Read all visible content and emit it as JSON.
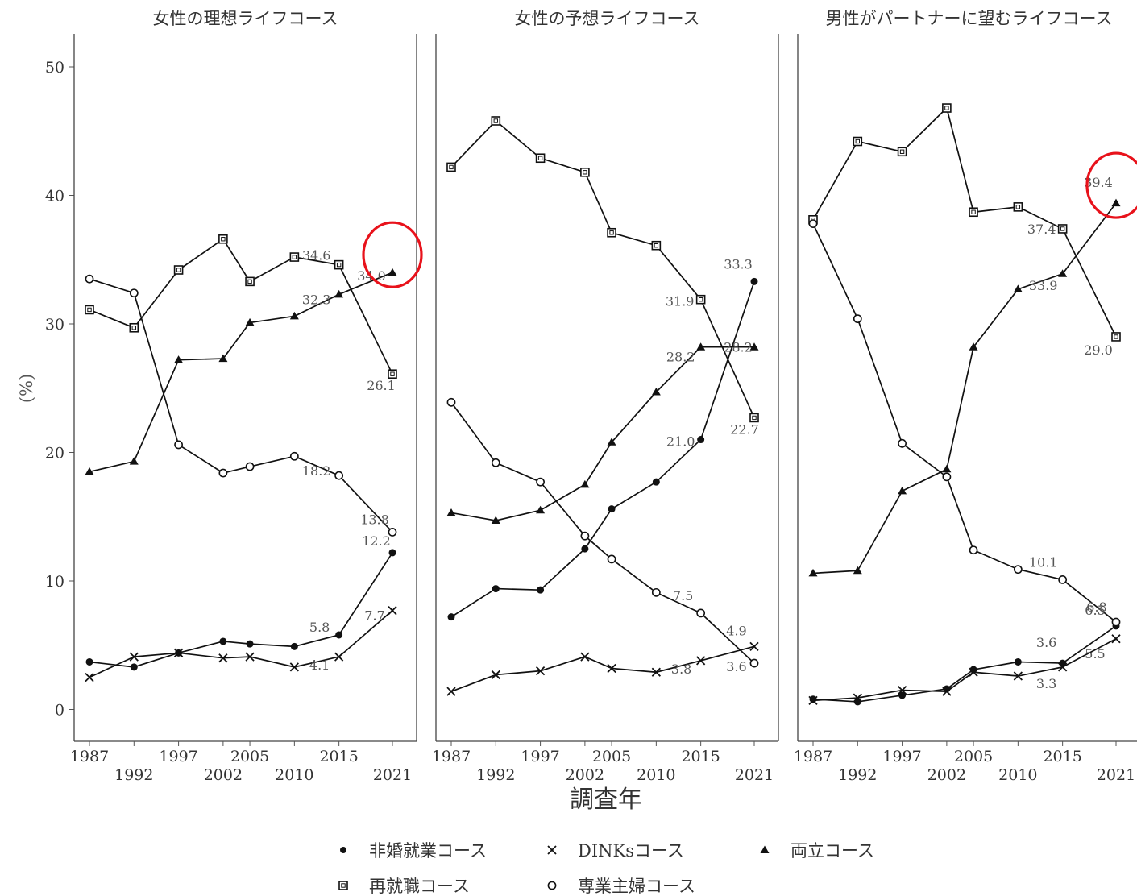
{
  "chart_data": {
    "type": "line",
    "xlabel": "調査年",
    "ylabel": "(%)",
    "ylim": [
      0,
      50
    ],
    "yticks": [
      0,
      10,
      20,
      30,
      40,
      50
    ],
    "xticks_upper": [
      "1987",
      "1997",
      "2005",
      "2015"
    ],
    "xticks_lower": [
      "1992",
      "2002",
      "2010",
      "2021"
    ],
    "x": [
      1987,
      1992,
      1997,
      2002,
      2005,
      2010,
      2015,
      2021
    ],
    "legend_position": "bottom",
    "legend": [
      {
        "key": "hikon",
        "label": "非婚就業コース",
        "marker": "filled-circle"
      },
      {
        "key": "dinks",
        "label": "DINKsコース",
        "marker": "cross"
      },
      {
        "key": "ryoritsu",
        "label": "両立コース",
        "marker": "triangle"
      },
      {
        "key": "saishushoku",
        "label": "再就職コース",
        "marker": "square"
      },
      {
        "key": "sengyo",
        "label": "専業主婦コース",
        "marker": "open-circle"
      }
    ],
    "highlight_color": "#e8121b",
    "panels": [
      {
        "title": "女性の理想ライフコース",
        "series": [
          {
            "key": "hikon",
            "values": [
              3.7,
              3.3,
              4.4,
              5.3,
              5.1,
              4.9,
              5.8,
              12.2
            ]
          },
          {
            "key": "dinks",
            "values": [
              2.5,
              4.1,
              4.4,
              4.0,
              4.1,
              3.3,
              4.1,
              7.7
            ]
          },
          {
            "key": "ryoritsu",
            "values": [
              18.5,
              19.3,
              27.2,
              27.3,
              30.1,
              30.6,
              32.3,
              34.0
            ]
          },
          {
            "key": "saishushoku",
            "values": [
              31.1,
              29.7,
              34.2,
              36.6,
              33.3,
              35.2,
              34.6,
              26.1
            ]
          },
          {
            "key": "sengyo",
            "values": [
              33.5,
              32.4,
              20.6,
              18.4,
              18.9,
              19.7,
              18.2,
              13.8
            ]
          }
        ],
        "labels": [
          {
            "text": "34.6",
            "series": "saishushoku",
            "xi": 6
          },
          {
            "text": "34.0",
            "series": "ryoritsu",
            "xi": 7
          },
          {
            "text": "32.3",
            "series": "ryoritsu",
            "xi": 6
          },
          {
            "text": "26.1",
            "series": "saishushoku",
            "xi": 7
          },
          {
            "text": "18.2",
            "series": "sengyo",
            "xi": 6
          },
          {
            "text": "13.8",
            "series": "sengyo",
            "xi": 7
          },
          {
            "text": "12.2",
            "series": "hikon",
            "xi": 7
          },
          {
            "text": "5.8",
            "series": "hikon",
            "xi": 6
          },
          {
            "text": "7.7",
            "series": "dinks",
            "xi": 7
          },
          {
            "text": "4.1",
            "series": "dinks",
            "xi": 6
          }
        ],
        "highlight": {
          "series": "ryoritsu",
          "xi": 7
        }
      },
      {
        "title": "女性の予想ライフコース",
        "series": [
          {
            "key": "hikon",
            "values": [
              7.2,
              9.4,
              9.3,
              12.5,
              15.6,
              17.7,
              21.0,
              33.3
            ]
          },
          {
            "key": "dinks",
            "values": [
              1.4,
              2.7,
              3.0,
              4.1,
              3.2,
              2.9,
              3.8,
              4.9
            ]
          },
          {
            "key": "ryoritsu",
            "values": [
              15.3,
              14.7,
              15.5,
              17.5,
              20.8,
              24.7,
              28.2,
              28.2
            ]
          },
          {
            "key": "saishushoku",
            "values": [
              42.2,
              45.8,
              42.9,
              41.8,
              37.1,
              36.1,
              31.9,
              22.7
            ]
          },
          {
            "key": "sengyo",
            "values": [
              23.9,
              19.2,
              17.7,
              13.5,
              11.7,
              9.1,
              7.5,
              3.6
            ]
          }
        ],
        "labels": [
          {
            "text": "33.3",
            "series": "hikon",
            "xi": 7
          },
          {
            "text": "31.9",
            "series": "saishushoku",
            "xi": 6
          },
          {
            "text": "28.2",
            "series": "ryoritsu",
            "xi": 7
          },
          {
            "text": "28.2",
            "series": "ryoritsu",
            "xi": 6
          },
          {
            "text": "22.7",
            "series": "saishushoku",
            "xi": 7
          },
          {
            "text": "21.0",
            "series": "hikon",
            "xi": 6
          },
          {
            "text": "7.5",
            "series": "sengyo",
            "xi": 6
          },
          {
            "text": "4.9",
            "series": "dinks",
            "xi": 7
          },
          {
            "text": "3.8",
            "series": "dinks",
            "xi": 6
          },
          {
            "text": "3.6",
            "series": "sengyo",
            "xi": 7
          }
        ]
      },
      {
        "title": "男性がパートナーに望むライフコース",
        "series": [
          {
            "key": "hikon",
            "values": [
              0.8,
              0.6,
              1.1,
              1.6,
              3.1,
              3.7,
              3.6,
              6.5
            ]
          },
          {
            "key": "dinks",
            "values": [
              0.7,
              0.9,
              1.5,
              1.4,
              2.9,
              2.6,
              3.3,
              5.5
            ]
          },
          {
            "key": "ryoritsu",
            "values": [
              10.6,
              10.8,
              17.0,
              18.7,
              28.2,
              32.7,
              33.9,
              39.4
            ]
          },
          {
            "key": "saishushoku",
            "values": [
              38.1,
              44.2,
              43.4,
              46.8,
              38.7,
              39.1,
              37.4,
              29.0
            ]
          },
          {
            "key": "sengyo",
            "values": [
              37.8,
              30.4,
              20.7,
              18.1,
              12.4,
              10.9,
              10.1,
              6.8
            ]
          }
        ],
        "labels": [
          {
            "text": "39.4",
            "series": "ryoritsu",
            "xi": 7
          },
          {
            "text": "37.4",
            "series": "saishushoku",
            "xi": 6
          },
          {
            "text": "33.9",
            "series": "ryoritsu",
            "xi": 6
          },
          {
            "text": "29.0",
            "series": "saishushoku",
            "xi": 7
          },
          {
            "text": "10.1",
            "series": "sengyo",
            "xi": 6
          },
          {
            "text": "6.8",
            "series": "sengyo",
            "xi": 7
          },
          {
            "text": "6.5",
            "series": "hikon",
            "xi": 7
          },
          {
            "text": "5.5",
            "series": "dinks",
            "xi": 7
          },
          {
            "text": "3.6",
            "series": "hikon",
            "xi": 6
          },
          {
            "text": "3.3",
            "series": "dinks",
            "xi": 6
          }
        ],
        "highlight": {
          "series": "ryoritsu",
          "xi": 7
        }
      }
    ]
  }
}
